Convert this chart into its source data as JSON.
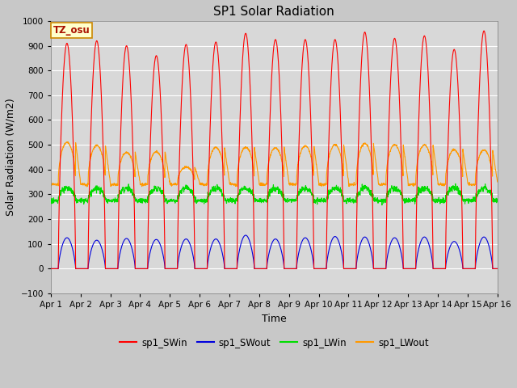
{
  "title": "SP1 Solar Radiation",
  "xlabel": "Time",
  "ylabel": "Solar Radiation (W/m2)",
  "ylim": [
    -100,
    1000
  ],
  "xtick_labels": [
    "Apr 1",
    "Apr 2",
    "Apr 3",
    "Apr 4",
    "Apr 5",
    "Apr 6",
    "Apr 7",
    "Apr 8",
    "Apr 9",
    "Apr 10",
    "Apr 11",
    "Apr 12",
    "Apr 13",
    "Apr 14",
    "Apr 15",
    "Apr 16"
  ],
  "ytick_vals": [
    -100,
    0,
    100,
    200,
    300,
    400,
    500,
    600,
    700,
    800,
    900,
    1000
  ],
  "colors": {
    "sp1_SWin": "#ff0000",
    "sp1_SWout": "#0000dd",
    "sp1_LWin": "#00dd00",
    "sp1_LWout": "#ff9900"
  },
  "annotation_text": "TZ_osu",
  "annotation_color": "#aa1100",
  "annotation_bg": "#ffffcc",
  "annotation_border": "#cc8800",
  "background_color": "#d8d8d8",
  "grid_color": "#ffffff",
  "sw_in_peaks": [
    910,
    920,
    900,
    860,
    905,
    915,
    950,
    925,
    925,
    925,
    955,
    930,
    940,
    885,
    960
  ],
  "sw_out_peaks": [
    125,
    115,
    122,
    118,
    120,
    120,
    135,
    120,
    125,
    130,
    128,
    125,
    128,
    110,
    128
  ],
  "lw_out_peaks": [
    510,
    498,
    470,
    472,
    410,
    490,
    490,
    488,
    496,
    500,
    505,
    500,
    500,
    480,
    478
  ],
  "lw_out_night": 345,
  "lw_in_base": 285,
  "lw_in_amplitude": 40,
  "n_days": 15,
  "pts_per_day": 144
}
